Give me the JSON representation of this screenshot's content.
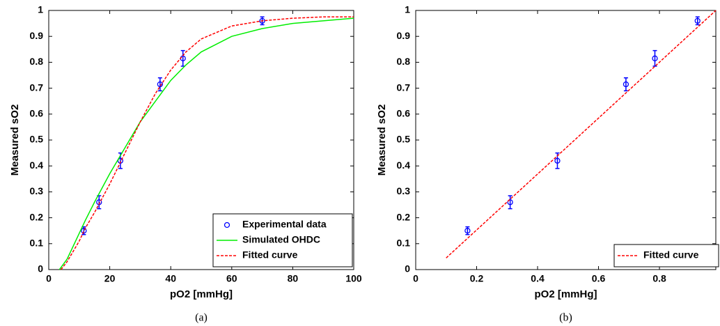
{
  "chart_data": [
    {
      "type": "line",
      "caption": "(a)",
      "x_label": "pO2 [mmHg]",
      "y_label": "Measured sO2",
      "xlim": [
        0,
        100
      ],
      "xticks": [
        0,
        20,
        40,
        60,
        80,
        100
      ],
      "ylim": [
        0,
        1
      ],
      "yticks": [
        0,
        0.1,
        0.2,
        0.3,
        0.4,
        0.5,
        0.6,
        0.7,
        0.8,
        0.9,
        1
      ],
      "legend": "lower right",
      "series": [
        {
          "name": "Experimental data",
          "color": "#0000ff",
          "marker": "circle",
          "x": [
            11.5,
            16.5,
            23.5,
            36.5,
            44,
            70
          ],
          "values": [
            0.15,
            0.26,
            0.42,
            0.715,
            0.815,
            0.96
          ],
          "errors": [
            0.015,
            0.025,
            0.03,
            0.025,
            0.03,
            0.015
          ]
        },
        {
          "name": "Simulated OHDC",
          "color": "#00ee00",
          "x": [
            3.5,
            6,
            8,
            10,
            12,
            15,
            20,
            25,
            30,
            35,
            40,
            45,
            50,
            60,
            70,
            80,
            90,
            100
          ],
          "values": [
            0,
            0.04,
            0.09,
            0.14,
            0.19,
            0.26,
            0.37,
            0.47,
            0.57,
            0.65,
            0.73,
            0.79,
            0.84,
            0.9,
            0.93,
            0.95,
            0.96,
            0.97
          ]
        },
        {
          "name": "Fitted curve",
          "color": "#ff0000",
          "dashed": true,
          "x": [
            4,
            6,
            8,
            10,
            12,
            15,
            20,
            25,
            30,
            35,
            40,
            45,
            50,
            60,
            70,
            80,
            90,
            100
          ],
          "values": [
            0,
            0.03,
            0.07,
            0.11,
            0.16,
            0.22,
            0.33,
            0.45,
            0.57,
            0.68,
            0.77,
            0.84,
            0.89,
            0.94,
            0.96,
            0.97,
            0.975,
            0.975
          ]
        }
      ]
    },
    {
      "type": "line",
      "caption": "(b)",
      "x_label": "pO2 [mmHg]",
      "y_label": "Measured sO2",
      "xlim": [
        0,
        0.985
      ],
      "xticks": [
        0,
        0.2,
        0.4,
        0.6,
        0.8
      ],
      "ylim": [
        0,
        1
      ],
      "yticks": [
        0,
        0.1,
        0.2,
        0.3,
        0.4,
        0.5,
        0.6,
        0.7,
        0.8,
        0.9,
        1
      ],
      "legend": "lower right",
      "series": [
        {
          "color": "#0000ff",
          "marker": "circle",
          "x": [
            0.17,
            0.31,
            0.465,
            0.69,
            0.785,
            0.925
          ],
          "values": [
            0.15,
            0.26,
            0.42,
            0.715,
            0.815,
            0.96
          ],
          "errors": [
            0.015,
            0.025,
            0.03,
            0.025,
            0.03,
            0.015
          ]
        },
        {
          "name": "Fitted curve",
          "color": "#ff0000",
          "dashed": true,
          "x": [
            0.1,
            0.985
          ],
          "values": [
            0.045,
            1.0
          ]
        }
      ]
    }
  ]
}
